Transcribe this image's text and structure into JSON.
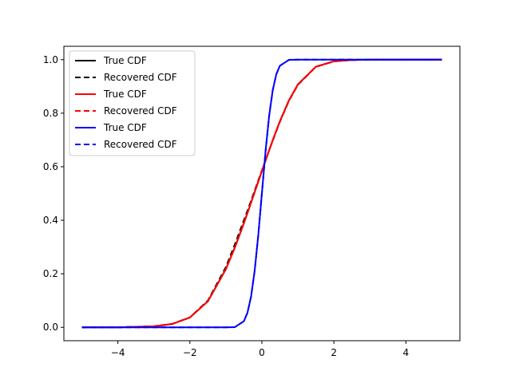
{
  "chart_data": {
    "type": "line",
    "title": "",
    "xlabel": "",
    "ylabel": "",
    "xlim": [
      -5.5,
      5.5
    ],
    "ylim": [
      -0.05,
      1.05
    ],
    "xticks": [
      -4,
      -2,
      0,
      2,
      4
    ],
    "xtick_labels": [
      "−4",
      "−2",
      "0",
      "2",
      "4"
    ],
    "yticks": [
      0.0,
      0.2,
      0.4,
      0.6,
      0.8,
      1.0
    ],
    "ytick_labels": [
      "0.0",
      "0.2",
      "0.4",
      "0.6",
      "0.8",
      "1.0"
    ],
    "grid": false,
    "legend_position": "top-left",
    "x": [
      -5,
      -4,
      -3,
      -2.5,
      -2,
      -1.5,
      -1,
      -0.75,
      -0.5,
      -0.4,
      -0.3,
      -0.2,
      -0.1,
      0,
      0.1,
      0.2,
      0.3,
      0.4,
      0.5,
      0.75,
      1,
      1.5,
      2,
      2.5,
      3,
      4,
      5
    ],
    "series": [
      {
        "name": "True CDF",
        "color": "#000000",
        "dash": "solid",
        "values": [
          0,
          0.0001,
          0.0038,
          0.0122,
          0.0367,
          0.0973,
          0.2175,
          0.2984,
          0.3894,
          0.4276,
          0.4664,
          0.5055,
          0.5447,
          0.5838,
          0.6226,
          0.6608,
          0.6983,
          0.7346,
          0.7696,
          0.8475,
          0.9074,
          0.9738,
          0.9938,
          0.9988,
          0.9998,
          1.0,
          1.0
        ]
      },
      {
        "name": "Recovered CDF",
        "color": "#000000",
        "dash": "dashed",
        "values": [
          0,
          0.0001,
          0.004,
          0.0125,
          0.037,
          0.1,
          0.225,
          0.31,
          0.4,
          0.436,
          0.473,
          0.511,
          0.549,
          0.586,
          0.624,
          0.661,
          0.697,
          0.733,
          0.768,
          0.846,
          0.906,
          0.973,
          0.9935,
          0.9987,
          0.9998,
          1.0,
          1.0
        ]
      },
      {
        "name": "True CDF",
        "color": "#ff0000",
        "dash": "solid",
        "values": [
          0,
          0.0001,
          0.0038,
          0.0122,
          0.0367,
          0.0973,
          0.2175,
          0.2984,
          0.3894,
          0.4276,
          0.4664,
          0.5055,
          0.5447,
          0.5838,
          0.6226,
          0.6608,
          0.6983,
          0.7346,
          0.7696,
          0.8475,
          0.9074,
          0.9738,
          0.9938,
          0.9988,
          0.9998,
          1.0,
          1.0
        ]
      },
      {
        "name": "Recovered CDF",
        "color": "#ff0000",
        "dash": "dashed",
        "values": [
          0,
          0.0001,
          0.0038,
          0.0122,
          0.0367,
          0.0975,
          0.218,
          0.299,
          0.39,
          0.428,
          0.467,
          0.506,
          0.545,
          0.584,
          0.623,
          0.661,
          0.698,
          0.734,
          0.769,
          0.847,
          0.907,
          0.9737,
          0.9938,
          0.9988,
          0.9998,
          1.0,
          1.0
        ]
      },
      {
        "name": "True CDF",
        "color": "#0000ff",
        "dash": "solid",
        "values": [
          0,
          0,
          0,
          0,
          0,
          0,
          0,
          0.0008,
          0.0228,
          0.0548,
          0.1151,
          0.2119,
          0.3446,
          0.5,
          0.6554,
          0.7881,
          0.8849,
          0.9452,
          0.9772,
          0.9992,
          1.0,
          1.0,
          1.0,
          1.0,
          1.0,
          1.0,
          1.0
        ]
      },
      {
        "name": "Recovered CDF",
        "color": "#0000ff",
        "dash": "dashed",
        "values": [
          0,
          0,
          0,
          0,
          0,
          0,
          0,
          0.0008,
          0.0228,
          0.0548,
          0.1151,
          0.2119,
          0.3446,
          0.5,
          0.6554,
          0.7881,
          0.8849,
          0.9452,
          0.9772,
          0.9992,
          1.0,
          1.0,
          1.0,
          1.0,
          1.0,
          1.0,
          1.0
        ]
      }
    ]
  }
}
